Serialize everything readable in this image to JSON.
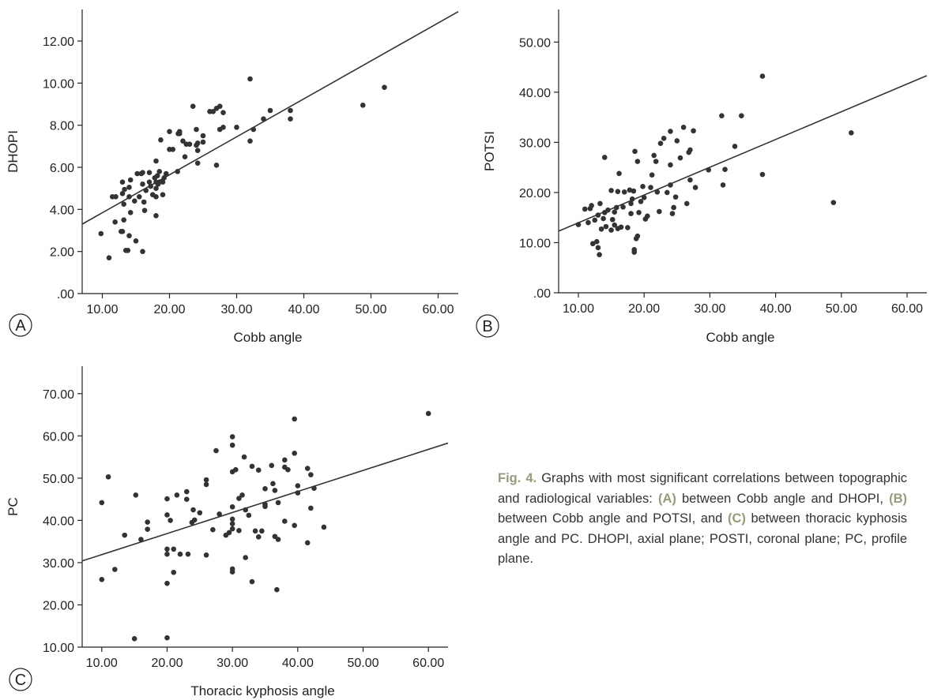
{
  "chart_data": [
    {
      "type": "scatter",
      "panel_label": "A",
      "xlabel": "Cobb angle",
      "ylabel": "DHOPI",
      "xlim": [
        7,
        63
      ],
      "ylim": [
        0,
        13.5
      ],
      "x_ticks": [
        10,
        20,
        30,
        40,
        50,
        60
      ],
      "x_tick_labels": [
        "10.00",
        "20.00",
        "30.00",
        "40.00",
        "50.00",
        "60.00"
      ],
      "y_ticks": [
        0,
        2,
        4,
        6,
        8,
        10,
        12
      ],
      "y_tick_labels": [
        ".00",
        "2.00",
        "4.00",
        "6.00",
        "8.00",
        "10.00",
        "12.00"
      ],
      "fit_line": [
        [
          7,
          3.3
        ],
        [
          63,
          13.4
        ]
      ],
      "points": [
        [
          9.8,
          2.85
        ],
        [
          11.0,
          1.7
        ],
        [
          11.5,
          4.6
        ],
        [
          11.9,
          3.4
        ],
        [
          12.0,
          4.6
        ],
        [
          12.8,
          2.95
        ],
        [
          13.0,
          2.95
        ],
        [
          13.0,
          4.75
        ],
        [
          13.0,
          5.3
        ],
        [
          13.2,
          3.5
        ],
        [
          13.2,
          4.25
        ],
        [
          13.3,
          4.95
        ],
        [
          13.5,
          2.05
        ],
        [
          13.8,
          2.05
        ],
        [
          14.0,
          2.75
        ],
        [
          14.0,
          4.6
        ],
        [
          14.0,
          5.05
        ],
        [
          14.2,
          5.4
        ],
        [
          14.2,
          3.85
        ],
        [
          14.8,
          4.4
        ],
        [
          15.0,
          2.5
        ],
        [
          15.2,
          5.7
        ],
        [
          15.5,
          4.6
        ],
        [
          15.8,
          5.7
        ],
        [
          16.0,
          2.0
        ],
        [
          16.0,
          5.2
        ],
        [
          16.0,
          5.75
        ],
        [
          16.2,
          4.35
        ],
        [
          16.3,
          3.95
        ],
        [
          16.5,
          4.9
        ],
        [
          17.0,
          5.75
        ],
        [
          17.0,
          5.3
        ],
        [
          17.2,
          5.1
        ],
        [
          17.5,
          4.7
        ],
        [
          17.8,
          5.5
        ],
        [
          18.0,
          3.7
        ],
        [
          18.0,
          4.6
        ],
        [
          18.0,
          5.0
        ],
        [
          18.0,
          5.3
        ],
        [
          18.0,
          6.3
        ],
        [
          18.2,
          5.6
        ],
        [
          18.3,
          5.2
        ],
        [
          18.5,
          5.8
        ],
        [
          18.5,
          5.3
        ],
        [
          18.7,
          7.3
        ],
        [
          19.0,
          5.3
        ],
        [
          19.0,
          4.7
        ],
        [
          19.2,
          5.5
        ],
        [
          19.5,
          5.7
        ],
        [
          20.0,
          6.85
        ],
        [
          20.0,
          7.7
        ],
        [
          20.5,
          6.85
        ],
        [
          21.2,
          5.8
        ],
        [
          21.3,
          7.6
        ],
        [
          21.5,
          7.6
        ],
        [
          21.5,
          7.7
        ],
        [
          22.0,
          7.25
        ],
        [
          22.3,
          6.5
        ],
        [
          22.5,
          7.1
        ],
        [
          23.0,
          7.1
        ],
        [
          23.5,
          8.9
        ],
        [
          24.0,
          7.05
        ],
        [
          24.0,
          7.8
        ],
        [
          24.2,
          7.15
        ],
        [
          24.2,
          6.8
        ],
        [
          24.2,
          6.2
        ],
        [
          25.0,
          7.2
        ],
        [
          25.0,
          7.5
        ],
        [
          26.0,
          8.65
        ],
        [
          26.5,
          8.65
        ],
        [
          27.0,
          6.1
        ],
        [
          27.0,
          8.8
        ],
        [
          27.5,
          8.9
        ],
        [
          27.5,
          7.8
        ],
        [
          28.0,
          8.6
        ],
        [
          28.0,
          7.9
        ],
        [
          30.0,
          7.9
        ],
        [
          32.0,
          7.25
        ],
        [
          32.0,
          10.2
        ],
        [
          32.5,
          7.8
        ],
        [
          34.0,
          8.3
        ],
        [
          35.0,
          8.7
        ],
        [
          38.0,
          8.7
        ],
        [
          38.0,
          8.3
        ],
        [
          48.8,
          8.95
        ],
        [
          52.0,
          9.8
        ]
      ]
    },
    {
      "type": "scatter",
      "panel_label": "B",
      "xlabel": "Cobb angle",
      "ylabel": "POTSI",
      "xlim": [
        7,
        63
      ],
      "ylim": [
        0,
        56.5
      ],
      "x_ticks": [
        10,
        20,
        30,
        40,
        50,
        60
      ],
      "x_tick_labels": [
        "10.00",
        "20.00",
        "30.00",
        "40.00",
        "50.00",
        "60.00"
      ],
      "y_ticks": [
        0,
        10,
        20,
        30,
        40,
        50
      ],
      "y_tick_labels": [
        ".00",
        "10.00",
        "20.00",
        "30.00",
        "40.00",
        "50.00"
      ],
      "fit_line": [
        [
          7,
          12.3
        ],
        [
          63,
          43.3
        ]
      ],
      "points": [
        [
          10.0,
          13.6
        ],
        [
          11.0,
          16.7
        ],
        [
          11.5,
          14.0
        ],
        [
          11.8,
          16.8
        ],
        [
          12.0,
          17.4
        ],
        [
          12.2,
          9.8
        ],
        [
          12.5,
          14.5
        ],
        [
          12.8,
          10.2
        ],
        [
          13.0,
          9.0
        ],
        [
          13.0,
          15.5
        ],
        [
          13.2,
          7.6
        ],
        [
          13.3,
          17.8
        ],
        [
          13.5,
          12.7
        ],
        [
          13.8,
          14.8
        ],
        [
          14.0,
          27.0
        ],
        [
          14.0,
          16.0
        ],
        [
          14.2,
          13.2
        ],
        [
          14.5,
          16.5
        ],
        [
          15.0,
          12.5
        ],
        [
          15.0,
          20.4
        ],
        [
          15.2,
          14.6
        ],
        [
          15.5,
          13.5
        ],
        [
          15.5,
          16.1
        ],
        [
          15.8,
          17.0
        ],
        [
          16.0,
          12.8
        ],
        [
          16.0,
          20.2
        ],
        [
          16.2,
          23.8
        ],
        [
          16.5,
          13.1
        ],
        [
          16.8,
          17.1
        ],
        [
          17.0,
          20.1
        ],
        [
          17.5,
          13.0
        ],
        [
          17.8,
          20.5
        ],
        [
          18.0,
          15.8
        ],
        [
          18.0,
          17.8
        ],
        [
          18.2,
          18.7
        ],
        [
          18.4,
          20.3
        ],
        [
          18.5,
          8.1
        ],
        [
          18.5,
          8.6
        ],
        [
          18.6,
          28.2
        ],
        [
          18.8,
          10.8
        ],
        [
          19.0,
          11.3
        ],
        [
          19.0,
          26.2
        ],
        [
          19.2,
          16.0
        ],
        [
          19.5,
          18.2
        ],
        [
          19.8,
          21.2
        ],
        [
          20.0,
          19.0
        ],
        [
          20.2,
          14.7
        ],
        [
          20.5,
          15.3
        ],
        [
          21.0,
          21.0
        ],
        [
          21.2,
          23.5
        ],
        [
          21.5,
          27.4
        ],
        [
          21.8,
          26.2
        ],
        [
          22.0,
          20.1
        ],
        [
          22.3,
          16.2
        ],
        [
          22.5,
          29.8
        ],
        [
          23.0,
          30.8
        ],
        [
          23.5,
          20.0
        ],
        [
          24.0,
          21.5
        ],
        [
          24.0,
          25.5
        ],
        [
          24.0,
          32.2
        ],
        [
          24.3,
          15.8
        ],
        [
          24.5,
          17.0
        ],
        [
          24.8,
          19.1
        ],
        [
          25.0,
          30.3
        ],
        [
          25.5,
          26.9
        ],
        [
          26.0,
          33.0
        ],
        [
          26.5,
          17.8
        ],
        [
          26.8,
          28.0
        ],
        [
          27.0,
          22.5
        ],
        [
          27.0,
          28.5
        ],
        [
          27.5,
          32.3
        ],
        [
          27.8,
          21.0
        ],
        [
          29.8,
          24.5
        ],
        [
          31.8,
          35.3
        ],
        [
          32.0,
          21.5
        ],
        [
          32.3,
          24.6
        ],
        [
          33.8,
          29.2
        ],
        [
          34.8,
          35.3
        ],
        [
          38.0,
          43.2
        ],
        [
          38.0,
          23.6
        ],
        [
          48.8,
          18.0
        ],
        [
          51.5,
          31.9
        ]
      ]
    },
    {
      "type": "scatter",
      "panel_label": "C",
      "xlabel": "Thoracic kyphosis angle",
      "ylabel": "PC",
      "xlim": [
        7,
        63
      ],
      "ylim": [
        10,
        76.5
      ],
      "x_ticks": [
        10,
        20,
        30,
        40,
        50,
        60
      ],
      "x_tick_labels": [
        "10.00",
        "20.00",
        "30.00",
        "40.00",
        "50.00",
        "60.00"
      ],
      "y_ticks": [
        10,
        20,
        30,
        40,
        50,
        60,
        70
      ],
      "y_tick_labels": [
        "10.00",
        "20.00",
        "30.00",
        "40.00",
        "50.00",
        "60.00",
        "70.00"
      ],
      "fit_line": [
        [
          7,
          30.4
        ],
        [
          63,
          58.3
        ]
      ],
      "points": [
        [
          10.0,
          44.2
        ],
        [
          10.0,
          26.0
        ],
        [
          11.0,
          50.3
        ],
        [
          12.0,
          28.4
        ],
        [
          13.5,
          36.5
        ],
        [
          15.0,
          12.0
        ],
        [
          15.2,
          46.0
        ],
        [
          16.0,
          35.5
        ],
        [
          17.0,
          39.6
        ],
        [
          17.0,
          37.9
        ],
        [
          20.0,
          45.1
        ],
        [
          20.0,
          41.3
        ],
        [
          20.0,
          33.2
        ],
        [
          20.0,
          32.0
        ],
        [
          20.0,
          25.1
        ],
        [
          20.0,
          12.2
        ],
        [
          20.5,
          40.0
        ],
        [
          21.0,
          33.2
        ],
        [
          21.0,
          27.7
        ],
        [
          21.5,
          46.0
        ],
        [
          22.0,
          32.0
        ],
        [
          23.0,
          46.8
        ],
        [
          23.0,
          45.0
        ],
        [
          23.2,
          32.0
        ],
        [
          23.8,
          39.5
        ],
        [
          24.0,
          42.5
        ],
        [
          24.2,
          40.1
        ],
        [
          25.0,
          41.8
        ],
        [
          26.0,
          49.6
        ],
        [
          26.0,
          48.5
        ],
        [
          26.0,
          31.8
        ],
        [
          27.0,
          37.8
        ],
        [
          27.5,
          56.5
        ],
        [
          28.0,
          41.5
        ],
        [
          29.0,
          36.5
        ],
        [
          29.5,
          37.1
        ],
        [
          30.0,
          59.8
        ],
        [
          30.0,
          57.8
        ],
        [
          30.0,
          51.5
        ],
        [
          30.0,
          43.2
        ],
        [
          30.0,
          40.3
        ],
        [
          30.0,
          39.2
        ],
        [
          30.0,
          38.0
        ],
        [
          30.0,
          28.5
        ],
        [
          30.0,
          27.8
        ],
        [
          30.5,
          52.0
        ],
        [
          31.0,
          45.2
        ],
        [
          31.0,
          37.6
        ],
        [
          31.5,
          46.0
        ],
        [
          31.8,
          55.0
        ],
        [
          32.0,
          42.5
        ],
        [
          32.0,
          31.2
        ],
        [
          32.5,
          41.2
        ],
        [
          33.0,
          52.8
        ],
        [
          33.0,
          25.5
        ],
        [
          33.5,
          37.5
        ],
        [
          34.0,
          51.9
        ],
        [
          34.0,
          36.1
        ],
        [
          34.5,
          37.5
        ],
        [
          35.0,
          47.5
        ],
        [
          35.0,
          43.8
        ],
        [
          35.0,
          43.3
        ],
        [
          36.0,
          53.0
        ],
        [
          36.2,
          48.7
        ],
        [
          36.5,
          47.1
        ],
        [
          36.5,
          36.2
        ],
        [
          36.8,
          23.6
        ],
        [
          37.0,
          44.2
        ],
        [
          37.0,
          35.5
        ],
        [
          38.0,
          54.3
        ],
        [
          38.0,
          52.6
        ],
        [
          38.0,
          39.8
        ],
        [
          38.5,
          52.0
        ],
        [
          39.5,
          55.9
        ],
        [
          39.5,
          64.0
        ],
        [
          39.5,
          38.8
        ],
        [
          40.0,
          48.2
        ],
        [
          40.0,
          46.5
        ],
        [
          41.5,
          52.3
        ],
        [
          41.5,
          34.7
        ],
        [
          42.0,
          50.8
        ],
        [
          42.0,
          42.9
        ],
        [
          42.5,
          47.6
        ],
        [
          44.0,
          38.4
        ],
        [
          60.0,
          65.3
        ]
      ]
    }
  ],
  "caption": {
    "figure_label": "Fig. 4.",
    "part1": " Graphs with most significant correlations between topographic and radiological variables: ",
    "tag_a": "(A)",
    "part2": " between Cobb angle and DHOPI, ",
    "tag_b": "(B)",
    "part3": " between Cobb angle and POTSI, and ",
    "tag_c": "(C)",
    "part4": " between thoracic kyphosis angle and PC. DHOPI, axial plane; POSTI, coronal plane; PC, profile plane."
  }
}
